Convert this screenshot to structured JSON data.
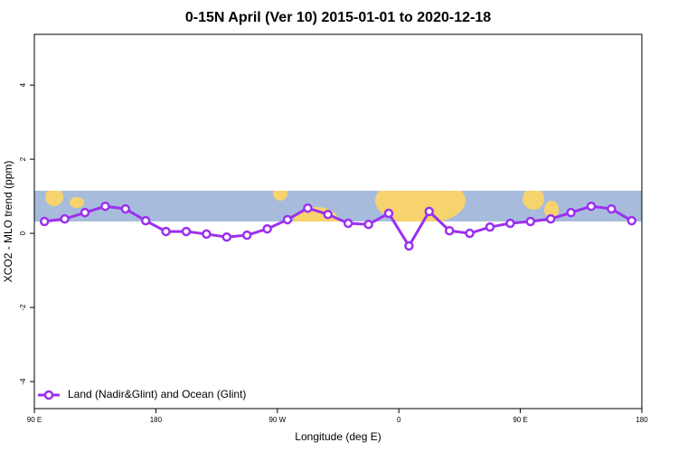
{
  "chart_data": {
    "type": "line",
    "title": "0-15N April (Ver 10)   2015-01-01 to 2020-12-18",
    "x_label": "Longitude (deg E)",
    "y_label": "XCO2 - MLO trend (ppm)",
    "x": [
      97.5,
      112.5,
      127.5,
      142.5,
      157.5,
      172.5,
      187.5,
      202.5,
      217.5,
      232.5,
      247.5,
      262.5,
      277.5,
      292.5,
      307.5,
      322.5,
      337.5,
      352.5,
      367.5,
      382.5,
      397.5,
      412.5,
      427.5,
      442.5,
      457.5,
      472.5,
      487.5,
      502.5,
      517.5,
      532.5
    ],
    "series": [
      {
        "name": "Land (Nadir&Glint) and Ocean (Glint)",
        "color": "#9b30f0",
        "values": [
          0.32,
          0.39,
          0.56,
          0.73,
          0.66,
          0.34,
          0.05,
          0.05,
          -0.02,
          -0.1,
          -0.05,
          0.12,
          0.37,
          0.68,
          0.51,
          0.27,
          0.24,
          0.54,
          -0.34,
          0.59,
          0.07,
          0.0,
          0.17,
          0.27,
          0.32,
          0.39,
          0.56,
          0.73,
          0.66,
          0.34
        ]
      }
    ],
    "xlim": [
      90,
      540
    ],
    "xticks": [
      {
        "value": 90,
        "label": "90 E"
      },
      180,
      {
        "value": 270,
        "label": "90 W"
      },
      {
        "value": 360,
        "label": "0"
      },
      {
        "value": 450,
        "label": "90 E"
      },
      {
        "value": 540,
        "label": "180"
      }
    ],
    "ylim": [
      -4.73,
      5.37
    ],
    "yticks": [
      -4,
      -2,
      0,
      2,
      4
    ],
    "legend": "bottom-left"
  }
}
